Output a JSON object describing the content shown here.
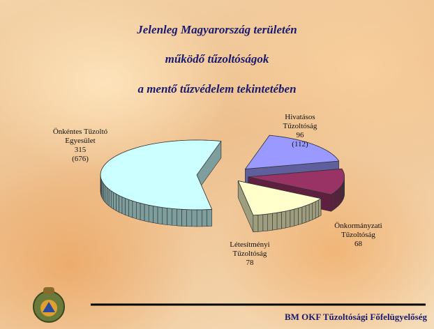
{
  "chart_data": {
    "type": "pie3d",
    "title": [
      "Jelenleg Magyarország területén",
      "működő tűzoltóságok",
      "a mentő tűzvédelem tekintetében"
    ],
    "categories": [
      "Önkéntes Tűzoltó Egyesület",
      "Hivatásos Tűzoltóság",
      "Önkormányzati Tűzoltóság",
      "Létesítményi Tűzoltóság"
    ],
    "values": [
      315,
      96,
      68,
      78
    ],
    "value_notes": [
      "(676)",
      "(112)",
      null,
      null
    ],
    "colors": [
      "#ccffff",
      "#9999ff",
      "#993366",
      "#ffffcc"
    ]
  },
  "footer": "BM OKF Tűzoltósági Főfelügyelőség"
}
